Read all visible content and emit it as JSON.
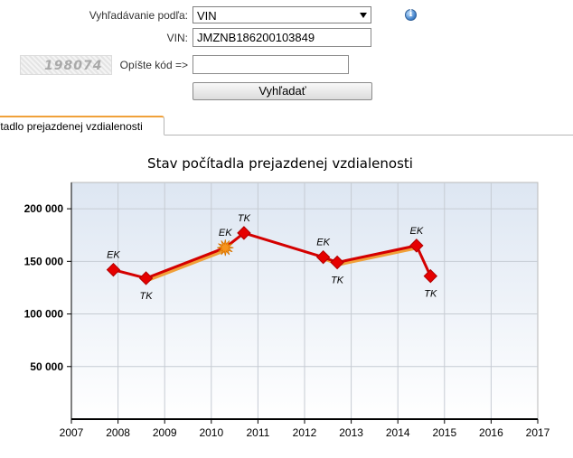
{
  "form": {
    "search_by_label": "Vyhľadávanie podľa:",
    "search_by_value": "VIN",
    "vin_label": "VIN:",
    "vin_value": "JMZNB186200103849",
    "captcha_code": "198074",
    "captcha_label": "Opíšte kód =>",
    "captcha_input_value": "",
    "search_button": "Vyhľadať",
    "info_icon": "info-icon"
  },
  "tab": {
    "label": "čítadlo prejazdenej vzdialenosti"
  },
  "chart_data": {
    "type": "line",
    "title": "Stav počítadla prejazdenej vzdialenosti",
    "xlabel": "",
    "ylabel": "",
    "xlim": [
      2007,
      2017
    ],
    "ylim": [
      0,
      225000
    ],
    "x_ticks": [
      "2007",
      "2008",
      "2009",
      "2010",
      "2011",
      "2012",
      "2013",
      "2014",
      "2015",
      "2016",
      "2017"
    ],
    "y_ticks": [
      {
        "value": 50000,
        "label": "50 000"
      },
      {
        "value": 100000,
        "label": "100 000"
      },
      {
        "value": 150000,
        "label": "150 000"
      },
      {
        "value": 200000,
        "label": "200 000"
      }
    ],
    "grid": true,
    "colors": {
      "line": "#d40000",
      "marker": "#e60000",
      "estimate_line": "#f0a13a",
      "estimate_marker": "#f7941d",
      "plot_bg_top": "#dde6f2",
      "plot_bg_bottom": "#ffffff"
    },
    "points": [
      {
        "x": 2007.9,
        "y": 142000,
        "label": "EK"
      },
      {
        "x": 2008.6,
        "y": 134000,
        "label": "TK"
      },
      {
        "x": 2010.3,
        "y": 163000,
        "label": "EK"
      },
      {
        "x": 2010.7,
        "y": 177000,
        "label": "TK"
      },
      {
        "x": 2012.4,
        "y": 154000,
        "label": "EK"
      },
      {
        "x": 2012.7,
        "y": 149000,
        "label": "TK"
      },
      {
        "x": 2014.4,
        "y": 165000,
        "label": "EK"
      },
      {
        "x": 2014.7,
        "y": 136000,
        "label": "TK"
      }
    ]
  }
}
